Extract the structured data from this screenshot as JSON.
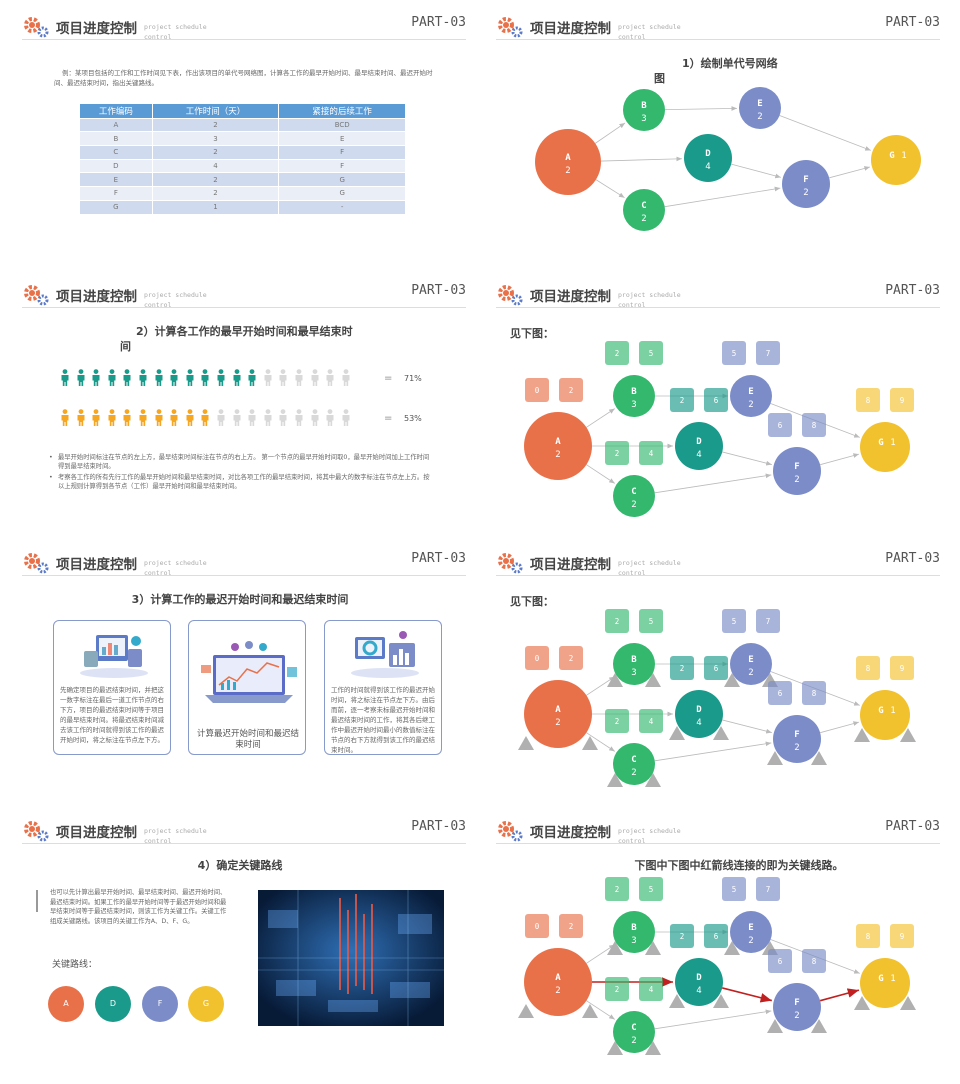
{
  "header": {
    "title": "项目进度控制",
    "subtitle": "project schedule control",
    "part": "PART-03"
  },
  "slide1": {
    "intro": "例：某项目包括的工作和工作时间见下表，作出该项目的单代号网络图，计算各工作的最早开始时间、最早结束时间、最迟开始时间、最迟结束时间，指出关键路线。",
    "headers": [
      "工作编码",
      "工作时间（天）",
      "紧接的后续工作"
    ],
    "rows": [
      [
        "A",
        "2",
        "BCD"
      ],
      [
        "B",
        "3",
        "E"
      ],
      [
        "C",
        "2",
        "F"
      ],
      [
        "D",
        "4",
        "F"
      ],
      [
        "E",
        "2",
        "G"
      ],
      [
        "F",
        "2",
        "G"
      ],
      [
        "G",
        "1",
        "-"
      ]
    ]
  },
  "slide2": {
    "title_line1": "1）绘制单代号网络",
    "title_line2": "图"
  },
  "slide3": {
    "title_line1": "2）计算各工作的最早开始时间和最早结束时",
    "title_line2": "间",
    "row1": {
      "value": 0.71,
      "label": "71%",
      "color": "#1a9a8a"
    },
    "row2": {
      "value": 0.53,
      "label": "53%",
      "color": "#f5a623"
    },
    "eq": "=",
    "bullets": [
      "最早开始时间标注在节点的左上方，最早结束时间标注在节点的右上方。 第一个节点的最早开始时间取0，最早开始时间加上工作时间得到最早结束时间。",
      "考察各工作的所有先行工作的最早开始时间和最早结束时间，对比各项工作的最早结束时间，将其中最大的数字标注在节点左上方。按以上规则计算得到各节点（工作）最早开始时间和最早结束时间。"
    ]
  },
  "slide4": {
    "title": "见下图："
  },
  "slide5": {
    "title": "3）计算工作的最迟开始时间和最迟结束时间",
    "card1": "先确定项目的最迟结束时间，并把这一数字标注在最后一道工作节点的右下方，项目的最迟结束时间等于项目的最早结束时间。将最迟结束时间减去该工作的时间就得到该工作的最迟开始时间，将之标注在节点左下方。",
    "card2": "计算最迟开始时间和最迟结束时间",
    "card3": "工作的时间就得到该工作的最迟开始时间，将之标注在节点左下方。由后而前，逐一考察未标最迟开始时间和最迟结束时间的工作，将其各后继工作中最迟开始时间最小的数值标注在节点的右下方就得到该工作的最迟结束时间。"
  },
  "slide6": {
    "title": "见下图："
  },
  "slide7": {
    "title": "4）确定关键路线",
    "text": "也可以先计算出最早开始时间、最早结束时间、最迟开始时间、最迟结束时间。如果工作的最早开始时间等于最迟开始时间和最早结束时间等于最迟结束时间，则该工作为关键工作。关键工作组成关键路线。该项目的关键工作为A、D、F、G。",
    "path_label": "关键路线：",
    "path": [
      {
        "n": "A",
        "color": "#e8714a"
      },
      {
        "n": "D",
        "color": "#1a9a8a"
      },
      {
        "n": "F",
        "color": "#7b8cc8"
      },
      {
        "n": "G",
        "color": "#f2c12e"
      }
    ]
  },
  "slide8": {
    "title": "下图中下图中红箭线连接的即为关键线路。"
  },
  "network": {
    "colors": {
      "A": "#e8714a",
      "B": "#34b86e",
      "C": "#34b86e",
      "D": "#1a9a8a",
      "E": "#7b8cc8",
      "F": "#7b8cc8",
      "G": "#f2c12e",
      "arrow": "#bbbbbb",
      "critical": "#c0201f",
      "tri": "#b0b0b0"
    },
    "nodes": [
      {
        "id": "A",
        "dur": "2",
        "es": "0",
        "ef": "2"
      },
      {
        "id": "B",
        "dur": "3",
        "es": "2",
        "ef": "5"
      },
      {
        "id": "C",
        "dur": "2",
        "es": "2",
        "ef": "4"
      },
      {
        "id": "D",
        "dur": "4",
        "es": "2",
        "ef": "6"
      },
      {
        "id": "E",
        "dur": "2",
        "es": "5",
        "ef": "7"
      },
      {
        "id": "F",
        "dur": "2",
        "es": "6",
        "ef": "8"
      },
      {
        "id": "G",
        "dur": "1",
        "es": "8",
        "ef": "9"
      }
    ],
    "edges": [
      [
        "A",
        "B"
      ],
      [
        "A",
        "C"
      ],
      [
        "A",
        "D"
      ],
      [
        "B",
        "E"
      ],
      [
        "D",
        "F"
      ],
      [
        "C",
        "F"
      ],
      [
        "E",
        "G"
      ],
      [
        "F",
        "G"
      ]
    ],
    "critical": [
      [
        "A",
        "D"
      ],
      [
        "D",
        "F"
      ],
      [
        "F",
        "G"
      ]
    ]
  }
}
